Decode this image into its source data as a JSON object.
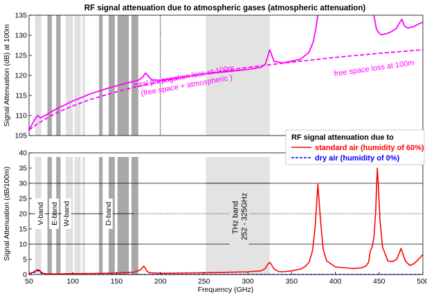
{
  "chart_data": [
    {
      "type": "line",
      "title": "RF signal attenuation due to atmospheric gases (atmospheric attenuation)",
      "ylabel": "Signal Attenuation (dB) at 100m",
      "xlim": [
        50,
        500
      ],
      "ylim": [
        105,
        135
      ],
      "yticks": [
        105,
        110,
        115,
        120,
        125,
        130,
        135
      ],
      "grid": false,
      "series": [
        {
          "name": "total propagation loss at 100m",
          "color": "#ff00ff",
          "style": "solid",
          "x": [
            50,
            55,
            58,
            60,
            63,
            66,
            70,
            80,
            100,
            120,
            140,
            160,
            175,
            180,
            183,
            186,
            190,
            200,
            220,
            250,
            280,
            300,
            315,
            320,
            325,
            330,
            340,
            360,
            370,
            375,
            378,
            380
          ],
          "y": [
            106.5,
            108.4,
            109.5,
            110.0,
            109.4,
            109.7,
            110.2,
            111.5,
            113.6,
            115.4,
            116.8,
            118.0,
            118.8,
            119.6,
            120.6,
            119.9,
            118.9,
            118.8,
            119.4,
            120.4,
            121.0,
            121.5,
            122.0,
            122.8,
            126.4,
            123.5,
            123.1,
            124.0,
            125.8,
            128.5,
            132.0,
            135
          ]
        },
        {
          "name": "",
          "color": "#ff00ff",
          "style": "solid",
          "x": [
            444,
            447,
            450,
            453,
            456,
            460,
            465,
            470,
            473,
            476,
            479,
            483,
            490,
            495,
            500
          ],
          "y": [
            135,
            131.5,
            130.5,
            130.1,
            130.3,
            130.5,
            131.0,
            131.8,
            133.0,
            134.0,
            132.3,
            131.8,
            132.2,
            132.8,
            133.3
          ]
        },
        {
          "name": "free space loss at 100m",
          "color": "#ff00ff",
          "style": "dashed",
          "x": [
            50,
            60,
            70,
            80,
            100,
            120,
            140,
            160,
            180,
            200,
            250,
            300,
            350,
            400,
            450,
            500
          ],
          "y": [
            106.4,
            108.0,
            109.3,
            110.5,
            112.4,
            114.0,
            115.3,
            116.5,
            117.5,
            118.5,
            120.4,
            122.0,
            123.3,
            124.5,
            125.5,
            126.4
          ]
        }
      ],
      "annotations": [
        {
          "lines": [
            "total propagation loss at 100m",
            "(free space + atmospheric )"
          ],
          "color": "#ff00ff"
        },
        {
          "lines": [
            "free space loss at 100m"
          ],
          "color": "#ff00ff"
        }
      ]
    },
    {
      "type": "line",
      "xlabel": "Frequency (GHz)",
      "ylabel": "Signal Attenuation (dB/100m)",
      "xlim": [
        50,
        500
      ],
      "ylim": [
        0,
        40
      ],
      "xticks": [
        50,
        100,
        150,
        200,
        250,
        300,
        350,
        400,
        450,
        500
      ],
      "yticks": [
        0,
        5,
        10,
        15,
        20,
        25,
        30,
        35,
        40
      ],
      "legend": {
        "title": "RF signal attenuation due to",
        "placement": "top-right"
      },
      "series": [
        {
          "name": "standard air (humidity of 60%)",
          "color": "#ff0000",
          "style": "solid",
          "x": [
            50,
            55,
            58,
            60,
            62,
            64,
            66,
            70,
            80,
            100,
            120,
            150,
            170,
            178,
            181,
            183,
            185,
            188,
            195,
            200,
            250,
            300,
            315,
            320,
            323,
            325,
            327,
            330,
            335,
            340,
            350,
            360,
            365,
            370,
            374,
            377,
            379,
            380,
            381,
            383,
            386,
            390,
            400,
            420,
            430,
            435,
            438,
            440,
            442,
            444,
            446,
            447,
            448,
            449,
            451,
            454,
            460,
            465,
            470,
            473,
            475,
            477,
            480,
            485,
            490,
            495,
            500
          ],
          "y": [
            0.3,
            0.8,
            1.4,
            1.6,
            1.4,
            0.8,
            0.4,
            0.2,
            0.2,
            0.3,
            0.35,
            0.5,
            0.8,
            1.6,
            2.8,
            2.0,
            1.0,
            0.6,
            0.5,
            0.4,
            0.6,
            0.9,
            1.2,
            2.0,
            3.5,
            4.0,
            3.2,
            1.8,
            1.0,
            0.9,
            1.2,
            1.8,
            2.5,
            4.0,
            8.0,
            16.0,
            25.0,
            29.7,
            26.0,
            18.0,
            8.5,
            4.5,
            2.5,
            2.0,
            2.2,
            2.8,
            4.0,
            7.8,
            9.0,
            12.0,
            20.0,
            28.0,
            35.0,
            30.0,
            18.0,
            9.0,
            4.5,
            4.2,
            5.0,
            7.0,
            8.6,
            7.0,
            4.5,
            3.0,
            3.6,
            5.0,
            6.6
          ]
        },
        {
          "name": "dry air (humidity of 0%)",
          "color": "#0000ff",
          "style": "dashed",
          "x": [
            50,
            55,
            58,
            60,
            62,
            64,
            66,
            70,
            80,
            150,
            250,
            350,
            450,
            500
          ],
          "y": [
            0.2,
            0.6,
            1.1,
            1.3,
            1.1,
            0.5,
            0.15,
            0.05,
            0.02,
            0.02,
            0.02,
            0.02,
            0.02,
            0.02
          ]
        }
      ],
      "reference_lines": [
        {
          "y": 10,
          "style": "solid"
        },
        {
          "y": 20,
          "style": "dotted"
        },
        {
          "y": 30,
          "style": "solid"
        }
      ],
      "bands": [
        {
          "label": "V-band",
          "range": [
            50,
            75
          ]
        },
        {
          "label": "E-band",
          "range": [
            71,
            86
          ]
        },
        {
          "label": "W-band",
          "range": [
            75,
            110
          ]
        },
        {
          "label": "D-band",
          "range": [
            110,
            170
          ]
        }
      ],
      "thz_band": {
        "lines": [
          "THz band",
          "252 - 325GHz"
        ],
        "range": [
          252,
          325
        ]
      }
    }
  ],
  "shaded_bars": [
    {
      "range": [
        57,
        64
      ],
      "shade": "#e0e0e0"
    },
    {
      "range": [
        71,
        76
      ],
      "shade": "#a8a8a8"
    },
    {
      "range": [
        81,
        86
      ],
      "shade": "#a8a8a8"
    },
    {
      "range": [
        92,
        100
      ],
      "shade": "#e0e0e0"
    },
    {
      "range": [
        102,
        109
      ],
      "shade": "#e0e0e0"
    },
    {
      "range": [
        111,
        114
      ],
      "shade": "#e0e0e0"
    },
    {
      "range": [
        130,
        134
      ],
      "shade": "#a8a8a8"
    },
    {
      "range": [
        141,
        148
      ],
      "shade": "#a8a8a8"
    },
    {
      "range": [
        151,
        164
      ],
      "shade": "#a8a8a8"
    },
    {
      "range": [
        167,
        174.8
      ],
      "shade": "#a8a8a8"
    },
    {
      "range": [
        252,
        325
      ],
      "shade": "#e3e3e3"
    }
  ],
  "marker_line": {
    "x": 200,
    "style": "dotted"
  }
}
